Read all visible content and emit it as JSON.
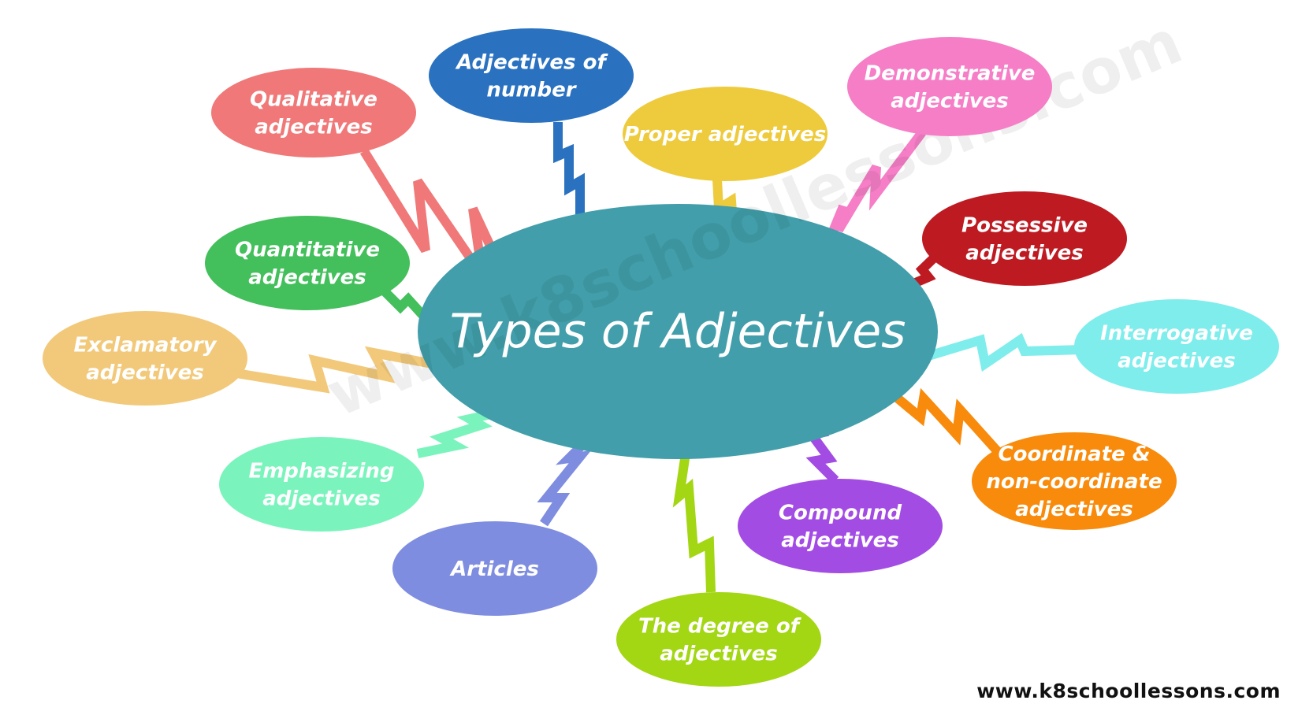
{
  "center": {
    "title": "Types of Adjectives",
    "color": "#419EAA"
  },
  "watermark": "www.k8schoollessons.com",
  "site_url": "www.k8schoollessons.com",
  "bubbles": [
    {
      "id": "qualitative",
      "lines": [
        "Qualitative",
        "adjectives"
      ],
      "color": "#F07878"
    },
    {
      "id": "number",
      "lines": [
        "Adjectives of",
        "number"
      ],
      "color": "#2A72C0"
    },
    {
      "id": "proper",
      "lines": [
        "Proper adjectives"
      ],
      "color": "#EECB3C"
    },
    {
      "id": "demonstrative",
      "lines": [
        "Demonstrative",
        "adjectives"
      ],
      "color": "#F57EC6"
    },
    {
      "id": "possessive",
      "lines": [
        "Possessive",
        "adjectives"
      ],
      "color": "#BE1A22"
    },
    {
      "id": "interrogative",
      "lines": [
        "Interrogative",
        "adjectives"
      ],
      "color": "#7EEDEC"
    },
    {
      "id": "coordinate",
      "lines": [
        "Coordinate &",
        "non-coordinate",
        "adjectives"
      ],
      "color": "#F88B0C"
    },
    {
      "id": "compound",
      "lines": [
        "Compound",
        "adjectives"
      ],
      "color": "#A24CE4"
    },
    {
      "id": "degree",
      "lines": [
        "The degree of",
        "adjectives"
      ],
      "color": "#A3D613"
    },
    {
      "id": "articles",
      "lines": [
        "Articles"
      ],
      "color": "#7F8DE0"
    },
    {
      "id": "emphasizing",
      "lines": [
        "Emphasizing",
        "adjectives"
      ],
      "color": "#7AF4BC"
    },
    {
      "id": "exclamatory",
      "lines": [
        "Exclamatory",
        "adjectives"
      ],
      "color": "#F2C97A"
    },
    {
      "id": "quantitative",
      "lines": [
        "Quantitative",
        "adjectives"
      ],
      "color": "#43BF5B"
    }
  ]
}
